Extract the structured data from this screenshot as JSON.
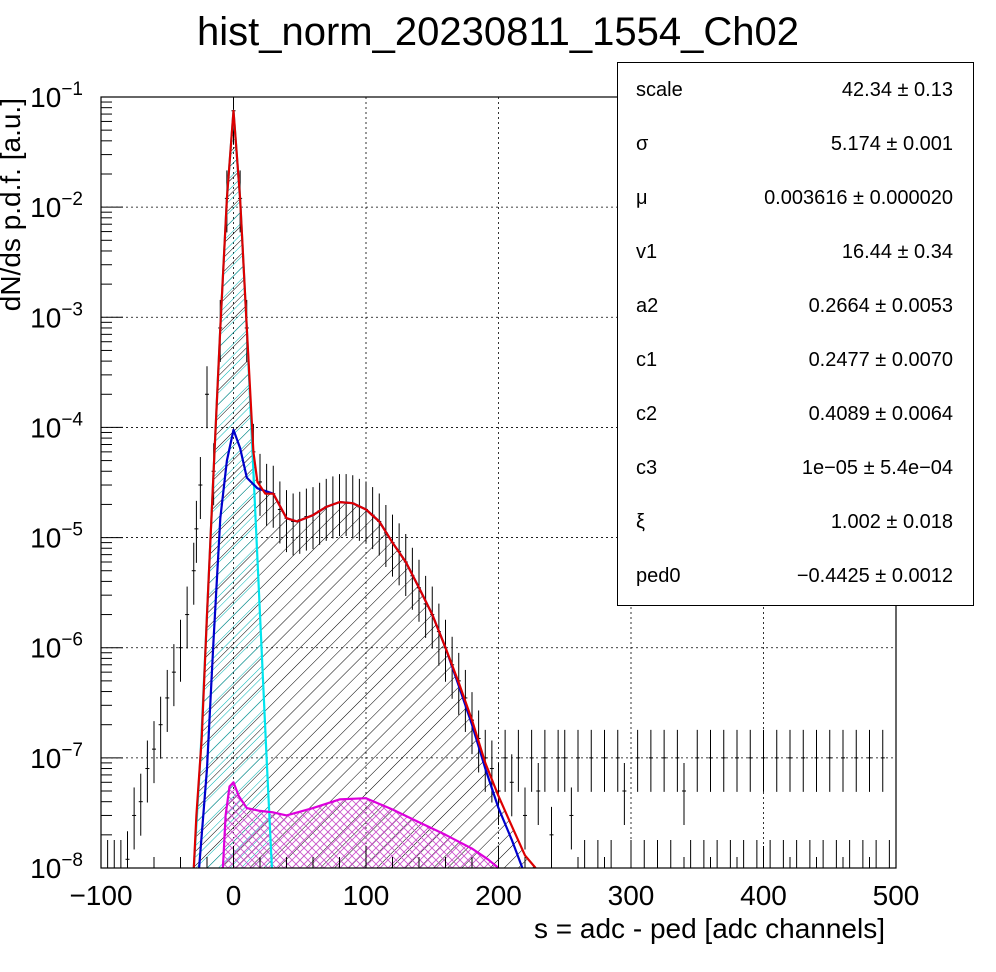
{
  "chart_data": {
    "type": "line",
    "title": "hist_norm_20230811_1554_Ch02",
    "xlabel": "s = adc - ped [adc channels]",
    "ylabel": "dN/ds p.d.f. [a.u.]",
    "xlim": [
      -100,
      500
    ],
    "ylim": [
      1e-08,
      0.1
    ],
    "log_y": true,
    "grid": true,
    "x_ticks": [
      "−100",
      "0",
      "100",
      "200",
      "300",
      "400",
      "500"
    ],
    "x_tick_values": [
      -100,
      0,
      100,
      200,
      300,
      400,
      500
    ],
    "y_tick_values": [
      1e-08,
      1e-07,
      1e-06,
      1e-05,
      0.0001,
      0.001,
      0.01,
      0.1
    ],
    "y_tick_exponents": [
      "−8",
      "−7",
      "−6",
      "−5",
      "−4",
      "−3",
      "−2",
      "−1"
    ],
    "y_tick_base": "10",
    "series": [
      {
        "color": "#00e5ee",
        "hatch": "#00cccc",
        "points": [
          [
            -30,
            1e-08
          ],
          [
            -25,
            1e-07
          ],
          [
            -20,
            2e-06
          ],
          [
            -15,
            4e-05
          ],
          [
            -10,
            0.0008
          ],
          [
            -5,
            0.012
          ],
          [
            0,
            0.075
          ],
          [
            5,
            0.012
          ],
          [
            10,
            0.0008
          ],
          [
            15,
            4e-05
          ],
          [
            20,
            2e-06
          ],
          [
            25,
            1e-07
          ],
          [
            29,
            1e-08
          ]
        ]
      },
      {
        "color": "#0000cc",
        "points": [
          [
            -26,
            1e-08
          ],
          [
            -20,
            8e-08
          ],
          [
            -15,
            1.2e-06
          ],
          [
            -10,
            1.5e-05
          ],
          [
            -5,
            5e-05
          ],
          [
            0,
            9.5e-05
          ],
          [
            5,
            6.5e-05
          ],
          [
            10,
            3.5e-05
          ],
          [
            18,
            2.8e-05
          ],
          [
            30,
            2.5e-05
          ],
          [
            40,
            1.5e-05
          ],
          [
            48,
            1.4e-05
          ],
          [
            60,
            1.6e-05
          ],
          [
            70,
            1.9e-05
          ],
          [
            80,
            2.1e-05
          ],
          [
            90,
            2.05e-05
          ],
          [
            100,
            1.8e-05
          ],
          [
            110,
            1.4e-05
          ],
          [
            120,
            9e-06
          ],
          [
            130,
            6e-06
          ],
          [
            140,
            3.5e-06
          ],
          [
            150,
            2e-06
          ],
          [
            160,
            1e-06
          ],
          [
            170,
            4.5e-07
          ],
          [
            180,
            2e-07
          ],
          [
            190,
            8e-08
          ],
          [
            200,
            3.5e-08
          ],
          [
            210,
            1.8e-08
          ],
          [
            218,
            1e-08
          ]
        ]
      },
      {
        "color": "#dd0000",
        "points": [
          [
            -30,
            1e-08
          ],
          [
            -28,
            3e-08
          ],
          [
            -24,
            1.5e-07
          ],
          [
            -20,
            2e-06
          ],
          [
            -15,
            4e-05
          ],
          [
            -10,
            0.0008
          ],
          [
            -5,
            0.012
          ],
          [
            0,
            0.075
          ],
          [
            5,
            0.012
          ],
          [
            10,
            0.0008
          ],
          [
            15,
            6e-05
          ],
          [
            18,
            3.2e-05
          ],
          [
            24,
            2.5e-05
          ],
          [
            30,
            2.5e-05
          ],
          [
            40,
            1.5e-05
          ],
          [
            48,
            1.4e-05
          ],
          [
            60,
            1.6e-05
          ],
          [
            70,
            1.9e-05
          ],
          [
            80,
            2.1e-05
          ],
          [
            90,
            2.05e-05
          ],
          [
            100,
            1.8e-05
          ],
          [
            110,
            1.4e-05
          ],
          [
            120,
            9e-06
          ],
          [
            130,
            6e-06
          ],
          [
            140,
            3.5e-06
          ],
          [
            150,
            2e-06
          ],
          [
            160,
            1e-06
          ],
          [
            170,
            4.8e-07
          ],
          [
            180,
            2.2e-07
          ],
          [
            190,
            9e-08
          ],
          [
            200,
            4.5e-08
          ],
          [
            210,
            2.4e-08
          ],
          [
            220,
            1.3e-08
          ],
          [
            228,
            1e-08
          ]
        ]
      },
      {
        "color": "#dd00dd",
        "hatch": "#cc66cc",
        "points": [
          [
            -8,
            1e-08
          ],
          [
            -6,
            3e-08
          ],
          [
            -3,
            5.5e-08
          ],
          [
            0,
            6e-08
          ],
          [
            4,
            4.5e-08
          ],
          [
            10,
            3.5e-08
          ],
          [
            20,
            3.3e-08
          ],
          [
            30,
            3.2e-08
          ],
          [
            40,
            3e-08
          ],
          [
            60,
            3.5e-08
          ],
          [
            80,
            4.2e-08
          ],
          [
            100,
            4.3e-08
          ],
          [
            120,
            3.4e-08
          ],
          [
            140,
            2.6e-08
          ],
          [
            160,
            2e-08
          ],
          [
            180,
            1.5e-08
          ],
          [
            192,
            1.2e-08
          ],
          [
            200,
            1e-08
          ]
        ]
      }
    ],
    "data_points_color": "#000000",
    "data_points": [
      [
        -95,
        1e-08
      ],
      [
        -90,
        1e-08
      ],
      [
        -85,
        1e-08
      ],
      [
        -80,
        1.2e-08
      ],
      [
        -75,
        3e-08
      ],
      [
        -70,
        4e-08
      ],
      [
        -65,
        8e-08
      ],
      [
        -60,
        1.2e-07
      ],
      [
        -55,
        2e-07
      ],
      [
        -50,
        3.5e-07
      ],
      [
        -45,
        6e-07
      ],
      [
        -40,
        1e-06
      ],
      [
        -35,
        2e-06
      ],
      [
        -30,
        5e-06
      ],
      [
        -28,
        1.2e-05
      ],
      [
        -25,
        3e-05
      ],
      [
        -20,
        0.0002
      ],
      [
        -15,
        4e-05
      ],
      [
        -10,
        0.0008
      ],
      [
        -5,
        0.012
      ],
      [
        0,
        0.075
      ],
      [
        5,
        0.012
      ],
      [
        10,
        0.0008
      ],
      [
        15,
        6e-05
      ],
      [
        20,
        3.2e-05
      ],
      [
        25,
        2.6e-05
      ],
      [
        30,
        2.5e-05
      ],
      [
        35,
        1.8e-05
      ],
      [
        40,
        1.5e-05
      ],
      [
        45,
        1.4e-05
      ],
      [
        50,
        1.45e-05
      ],
      [
        55,
        1.55e-05
      ],
      [
        60,
        1.6e-05
      ],
      [
        65,
        1.75e-05
      ],
      [
        70,
        1.9e-05
      ],
      [
        75,
        2e-05
      ],
      [
        80,
        2.1e-05
      ],
      [
        85,
        2.1e-05
      ],
      [
        90,
        2.05e-05
      ],
      [
        95,
        1.9e-05
      ],
      [
        100,
        1.8e-05
      ],
      [
        105,
        1.6e-05
      ],
      [
        110,
        1.4e-05
      ],
      [
        115,
        1.1e-05
      ],
      [
        120,
        9e-06
      ],
      [
        125,
        7.5e-06
      ],
      [
        130,
        6e-06
      ],
      [
        135,
        4.5e-06
      ],
      [
        140,
        3.5e-06
      ],
      [
        145,
        2.5e-06
      ],
      [
        150,
        2e-06
      ],
      [
        155,
        1.4e-06
      ],
      [
        160,
        1e-06
      ],
      [
        165,
        7e-07
      ],
      [
        170,
        5e-07
      ],
      [
        175,
        3.5e-07
      ],
      [
        180,
        2.2e-07
      ],
      [
        185,
        1.5e-07
      ],
      [
        190,
        1e-07
      ],
      [
        195,
        8e-08
      ],
      [
        200,
        5e-08
      ],
      [
        205,
        1e-07
      ],
      [
        210,
        6e-08
      ],
      [
        215,
        1e-07
      ],
      [
        220,
        3e-08
      ],
      [
        225,
        1e-07
      ],
      [
        230,
        5e-08
      ],
      [
        235,
        1e-07
      ],
      [
        240,
        2e-08
      ],
      [
        245,
        1e-07
      ],
      [
        250,
        1e-07
      ],
      [
        255,
        3e-08
      ],
      [
        260,
        1e-07
      ],
      [
        265,
        1e-08
      ],
      [
        270,
        1e-07
      ],
      [
        275,
        1e-08
      ],
      [
        280,
        1e-07
      ],
      [
        285,
        1e-08
      ],
      [
        290,
        1e-07
      ],
      [
        295,
        5e-08
      ],
      [
        300,
        1e-08
      ],
      [
        305,
        1e-07
      ],
      [
        310,
        1e-08
      ],
      [
        315,
        1e-07
      ],
      [
        320,
        1e-08
      ],
      [
        325,
        1e-07
      ],
      [
        330,
        1e-08
      ],
      [
        335,
        1e-07
      ],
      [
        340,
        5e-08
      ],
      [
        345,
        1e-08
      ],
      [
        350,
        1e-07
      ],
      [
        355,
        1e-08
      ],
      [
        360,
        1e-07
      ],
      [
        365,
        1e-08
      ],
      [
        370,
        1e-07
      ],
      [
        375,
        1e-08
      ],
      [
        380,
        1e-07
      ],
      [
        385,
        1e-08
      ],
      [
        390,
        1e-07
      ],
      [
        395,
        1e-08
      ],
      [
        400,
        1e-07
      ],
      [
        405,
        1e-08
      ],
      [
        410,
        1e-07
      ],
      [
        415,
        1e-08
      ],
      [
        420,
        1e-07
      ],
      [
        425,
        1e-08
      ],
      [
        430,
        1e-07
      ],
      [
        435,
        1e-08
      ],
      [
        440,
        1e-07
      ],
      [
        445,
        1e-08
      ],
      [
        450,
        1e-07
      ],
      [
        455,
        1e-08
      ],
      [
        460,
        1e-07
      ],
      [
        465,
        1e-08
      ],
      [
        470,
        1e-07
      ],
      [
        475,
        1e-08
      ],
      [
        480,
        1e-07
      ],
      [
        485,
        1e-08
      ],
      [
        490,
        1e-07
      ],
      [
        495,
        1e-08
      ]
    ]
  },
  "stats_box": {
    "rows": [
      {
        "name": "scale",
        "value": "42.34",
        "error": "0.13"
      },
      {
        "name": "σ",
        "value": "5.174",
        "error": "0.001"
      },
      {
        "name": "μ",
        "value": "0.003616",
        "error": "0.000020"
      },
      {
        "name": "v1",
        "value": "16.44",
        "error": "0.34"
      },
      {
        "name": "a2",
        "value": "0.2664",
        "error": "0.0053"
      },
      {
        "name": "c1",
        "value": "0.2477",
        "error": "0.0070"
      },
      {
        "name": "c2",
        "value": "0.4089",
        "error": "0.0064"
      },
      {
        "name": "c3",
        "value": "1e−05",
        "error": "5.4e−04"
      },
      {
        "name": "ξ",
        "value": "1.002",
        "error": "0.018"
      },
      {
        "name": "ped0",
        "value": "−0.4425",
        "error": "0.0012"
      }
    ],
    "pm_symbol": "±"
  }
}
